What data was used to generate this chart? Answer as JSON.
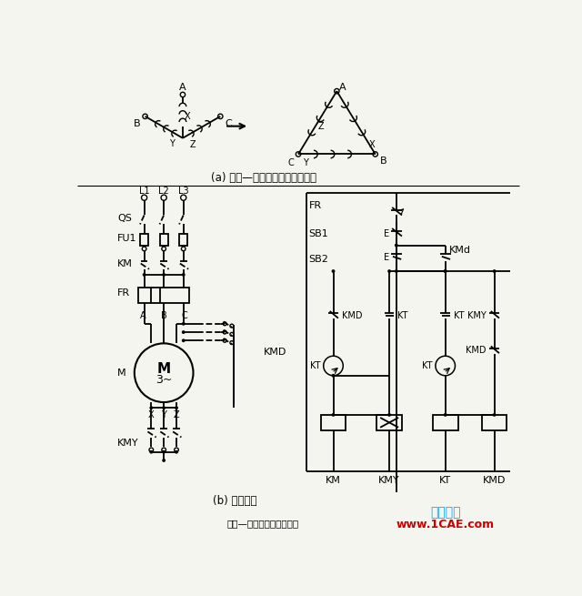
{
  "title": "星形—三角形自動控制線路",
  "subtitle_a": "(a) 星形—三角形轉換繞組連接圖",
  "subtitle_b": "(b) 控制線路",
  "watermark": "仿真在線",
  "watermark2": "www.1CAE.com",
  "bg_color": "#f5f5f0",
  "line_color": "#000000",
  "watermark_color": "#00aaff",
  "watermark2_color": "#cc0000",
  "fig_width": 6.4,
  "fig_height": 6.55,
  "dpi": 100
}
